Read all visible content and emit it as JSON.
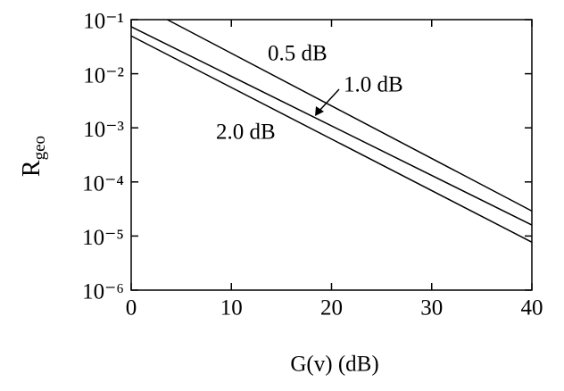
{
  "chart_data": {
    "type": "line",
    "ylabel": "R",
    "ylabel_sub": "geo",
    "xlabel": "G(v) (dB)",
    "xlim": [
      0,
      40
    ],
    "xticks": [
      0,
      10,
      20,
      30,
      40
    ],
    "ylim": [
      1e-06,
      0.1
    ],
    "yscale": "log",
    "yticks": [
      {
        "value": 0.1,
        "label": "10⁻¹"
      },
      {
        "value": 0.01,
        "label": "10⁻²"
      },
      {
        "value": 0.001,
        "label": "10⁻³"
      },
      {
        "value": 0.0001,
        "label": "10⁻⁴"
      },
      {
        "value": 1e-05,
        "label": "10⁻⁵"
      },
      {
        "value": 1e-06,
        "label": "10⁻⁶"
      }
    ],
    "grid": false,
    "series": [
      {
        "name": "0.5 dB",
        "color": "#000000",
        "x": [
          3.6,
          40
        ],
        "values": [
          0.1,
          2.9e-05
        ]
      },
      {
        "name": "1.0 dB",
        "color": "#000000",
        "x": [
          0,
          40
        ],
        "values": [
          0.074,
          1.6e-05
        ]
      },
      {
        "name": "2.0 dB",
        "color": "#000000",
        "x": [
          0,
          40
        ],
        "values": [
          0.05,
          7.7e-06
        ]
      }
    ]
  }
}
